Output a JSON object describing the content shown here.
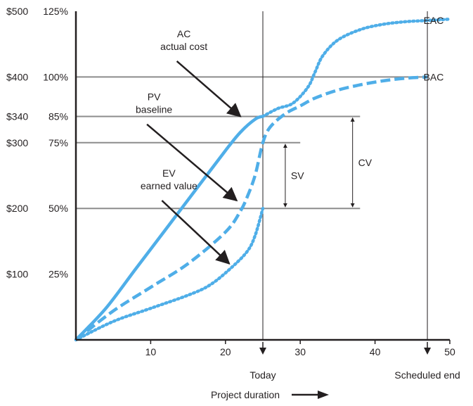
{
  "colors": {
    "curve": "#4faee8",
    "grid": "#8c8c8c",
    "axis": "#231f20"
  },
  "chart_data": {
    "type": "line",
    "xlim": [
      0,
      50
    ],
    "y_pct_lim": [
      0,
      125
    ],
    "x_ticks": [
      10,
      20,
      30,
      40,
      50
    ],
    "y_ticks": [
      {
        "dollar": "$500",
        "pct": "125%",
        "value": 125
      },
      {
        "dollar": "$400",
        "pct": "100%",
        "value": 100
      },
      {
        "dollar": "$340",
        "pct": "85%",
        "value": 85
      },
      {
        "dollar": "$300",
        "pct": "75%",
        "value": 75
      },
      {
        "dollar": "$200",
        "pct": "50%",
        "value": 50
      },
      {
        "dollar": "$100",
        "pct": "25%",
        "value": 25
      }
    ],
    "series": [
      {
        "key": "ac",
        "style": "solid",
        "x": [
          0,
          4,
          8,
          12,
          16,
          20,
          22,
          24,
          25
        ],
        "y": [
          0,
          12,
          27,
          42,
          57,
          72,
          79,
          84,
          85
        ]
      },
      {
        "key": "pv",
        "style": "dashed",
        "x": [
          0,
          5,
          10,
          15,
          20,
          22,
          23,
          24,
          25,
          26,
          28,
          30,
          32,
          35,
          38,
          41,
          44,
          47
        ],
        "y": [
          0,
          11,
          20,
          29,
          41,
          49,
          55,
          63,
          75,
          81,
          86,
          89,
          92,
          95,
          97,
          98.5,
          99.5,
          100
        ]
      },
      {
        "key": "ev",
        "style": "dotted",
        "x": [
          0,
          5,
          10,
          15,
          18,
          21,
          23,
          24,
          25
        ],
        "y": [
          0,
          7,
          12,
          17,
          21,
          28,
          34,
          40,
          50
        ]
      },
      {
        "key": "ac_projection",
        "style": "dotted",
        "x": [
          25,
          27,
          29,
          31,
          32,
          33,
          35,
          38,
          41,
          44,
          47,
          50
        ],
        "y": [
          85,
          88,
          90,
          96,
          102,
          108,
          114,
          118,
          120,
          121,
          121.5,
          122
        ]
      }
    ],
    "reference_lines": [
      {
        "value": 100,
        "x_end": 47
      },
      {
        "value": 85,
        "x_end": 38
      },
      {
        "value": 75,
        "x_end": 30
      },
      {
        "value": 50,
        "x_end": 38
      }
    ],
    "markers": [
      {
        "x": 25,
        "label": "Today"
      },
      {
        "x": 47,
        "label": "Scheduled end"
      }
    ],
    "variances": [
      {
        "label": "SV",
        "x": 28,
        "from": 50,
        "to": 75
      },
      {
        "label": "CV",
        "x": 37,
        "from": 50,
        "to": 85
      }
    ],
    "annotations": [
      {
        "key": "ac",
        "lines": [
          "AC",
          "actual cost"
        ],
        "arrow_from": [
          13.5,
          106
        ],
        "arrow_to": [
          22,
          85
        ]
      },
      {
        "key": "pv",
        "lines": [
          "PV",
          "baseline"
        ],
        "arrow_from": [
          9.5,
          82
        ],
        "arrow_to": [
          21.5,
          53
        ]
      },
      {
        "key": "ev",
        "lines": [
          "EV",
          "earned value"
        ],
        "arrow_from": [
          11.5,
          53
        ],
        "arrow_to": [
          20.5,
          29
        ]
      }
    ],
    "end_labels": [
      {
        "text": "EAC",
        "y": 122
      },
      {
        "text": "BAC",
        "y": 100
      }
    ],
    "xlabel": "Project duration"
  }
}
